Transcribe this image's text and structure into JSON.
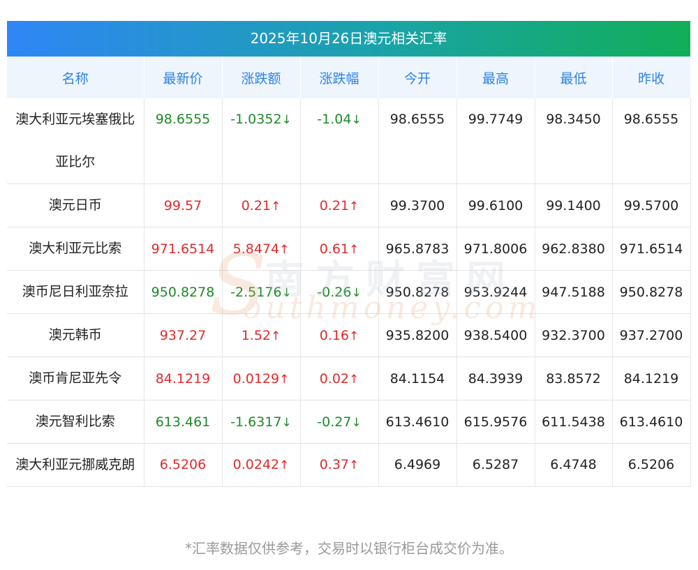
{
  "title": "2025年10月26日澳元相关汇率",
  "headers": [
    "名称",
    "最新价",
    "涨跌额",
    "涨跌幅",
    "今开",
    "最高",
    "最低",
    "昨收"
  ],
  "rows": [
    {
      "name": "澳大利亚元埃塞俄比亚比尔",
      "latest": "98.6555",
      "change": "-1.0352",
      "pct": "-1.04",
      "open": "98.6555",
      "high": "99.7749",
      "low": "98.3450",
      "prev": "98.6555",
      "dir": "down"
    },
    {
      "name": "澳元日币",
      "latest": "99.57",
      "change": "0.21",
      "pct": "0.21",
      "open": "99.3700",
      "high": "99.6100",
      "low": "99.1400",
      "prev": "99.5700",
      "dir": "up"
    },
    {
      "name": "澳大利亚元比索",
      "latest": "971.6514",
      "change": "5.8474",
      "pct": "0.61",
      "open": "965.8783",
      "high": "971.8006",
      "low": "962.8380",
      "prev": "971.6514",
      "dir": "up"
    },
    {
      "name": "澳币尼日利亚奈拉",
      "latest": "950.8278",
      "change": "-2.5176",
      "pct": "-0.26",
      "open": "950.8278",
      "high": "953.9244",
      "low": "947.5188",
      "prev": "950.8278",
      "dir": "down"
    },
    {
      "name": "澳元韩币",
      "latest": "937.27",
      "change": "1.52",
      "pct": "0.16",
      "open": "935.8200",
      "high": "938.5400",
      "low": "932.3700",
      "prev": "937.2700",
      "dir": "up"
    },
    {
      "name": "澳币肯尼亚先令",
      "latest": "84.1219",
      "change": "0.0129",
      "pct": "0.02",
      "open": "84.1154",
      "high": "84.3939",
      "low": "83.8572",
      "prev": "84.1219",
      "dir": "up"
    },
    {
      "name": "澳元智利比索",
      "latest": "613.461",
      "change": "-1.6317",
      "pct": "-0.27",
      "open": "613.4610",
      "high": "615.9576",
      "low": "611.5438",
      "prev": "613.4610",
      "dir": "down"
    },
    {
      "name": "澳大利亚元挪威克朗",
      "latest": "6.5206",
      "change": "0.0242",
      "pct": "0.37",
      "open": "6.4969",
      "high": "6.5287",
      "low": "6.4748",
      "prev": "6.5206",
      "dir": "up"
    }
  ],
  "arrows": {
    "up": "↑",
    "down": "↓"
  },
  "watermark": {
    "cn": "南方财富网",
    "url": "outhmoney.com",
    "s": "S"
  },
  "footnote": "*汇率数据仅供参考，交易时以银行柜台成交价为准。",
  "colors": {
    "up": "#e02b2b",
    "down": "#1d8a28",
    "header_text": "#2d83e8",
    "title_start": "#2f86f6",
    "title_end": "#12ae58"
  }
}
